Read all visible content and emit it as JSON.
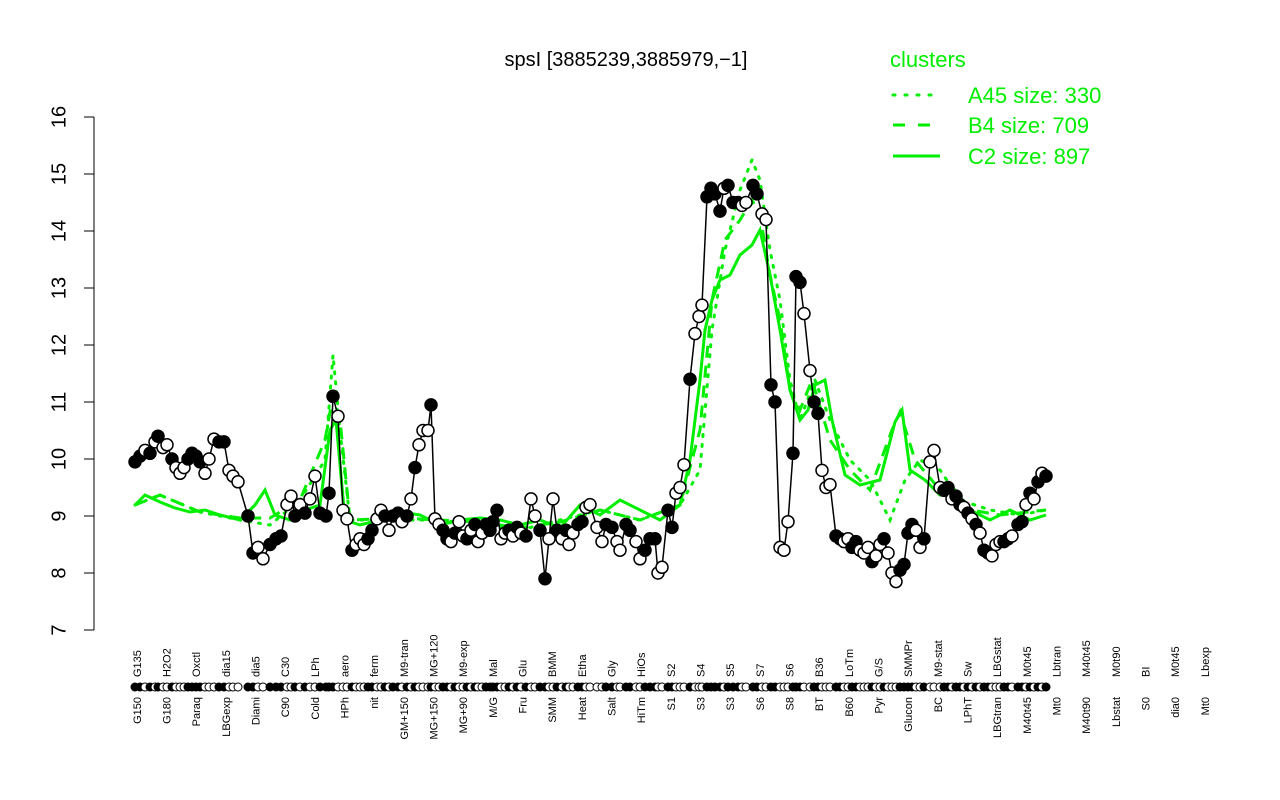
{
  "chart_data": {
    "type": "line",
    "title": "spsI [3885239,3885979,−1]",
    "xlabel": "",
    "ylabel": "",
    "ylim": [
      7,
      16
    ],
    "yticks": [
      7,
      8,
      9,
      10,
      11,
      12,
      13,
      14,
      15,
      16
    ],
    "grid": false,
    "legend": {
      "title": "clusters",
      "position": "top-right",
      "color": "#00ee00",
      "entries": [
        {
          "label": "A45 size: 330",
          "style": "dotted"
        },
        {
          "label": "B4 size: 709",
          "style": "dashed"
        },
        {
          "label": "C2 size: 897",
          "style": "solid"
        }
      ]
    },
    "x_tick_labels_bottom": [
      "G150",
      "G180",
      "Paraq",
      "LBGexp",
      "Diami",
      "C90",
      "Cold",
      "HPh",
      "nit",
      "GM+150",
      "MG+150",
      "MG+90",
      "M/G",
      "Fru",
      "SMM",
      "Heat",
      "Salt",
      "HiTm",
      "S1",
      "S3",
      "S3",
      "S6",
      "S8",
      "BT",
      "B60",
      "Pyr",
      "Glucon",
      "BC",
      "LPhT",
      "LBGtran",
      "M40t45",
      "Mt0",
      "M40t90",
      "Lbstat",
      "S0",
      "dia0",
      "Mt0"
    ],
    "x_tick_labels_top": [
      "G135",
      "H2O2",
      "Oxctl",
      "dia15",
      "dia5",
      "C30",
      "LPh",
      "aero",
      "ferm",
      "M9-tran",
      "MG+120",
      "M9-exp",
      "Mal",
      "Glu",
      "BMM",
      "Etha",
      "Gly",
      "HiOs",
      "S2",
      "S4",
      "S5",
      "S7",
      "S6",
      "B36",
      "LoTm",
      "G/S",
      "SMMPr",
      "M9-stat",
      "Sw",
      "LBGstat",
      "M0t45",
      "Lbtran",
      "M40t45",
      "M0t90",
      "BI",
      "M0t45",
      "Lbexp"
    ],
    "series": [
      {
        "name": "expression",
        "color": "#000000",
        "points": [
          [
            135,
            9.95,
            1
          ],
          [
            140,
            10.05,
            1
          ],
          [
            145,
            10.15,
            0
          ],
          [
            150,
            10.1,
            1
          ],
          [
            155,
            10.3,
            0
          ],
          [
            158,
            10.4,
            1
          ],
          [
            163,
            10.2,
            0
          ],
          [
            167,
            10.25,
            0
          ],
          [
            172,
            10.0,
            1
          ],
          [
            176,
            9.85,
            0
          ],
          [
            180,
            9.75,
            0
          ],
          [
            184,
            9.85,
            0
          ],
          [
            188,
            10.0,
            1
          ],
          [
            192,
            10.1,
            1
          ],
          [
            196,
            10.05,
            1
          ],
          [
            200,
            9.95,
            1
          ],
          [
            205,
            9.75,
            0
          ],
          [
            209,
            10.0,
            0
          ],
          [
            214,
            10.35,
            0
          ],
          [
            219,
            10.3,
            1
          ],
          [
            224,
            10.3,
            1
          ],
          [
            229,
            9.8,
            0
          ],
          [
            233,
            9.7,
            0
          ],
          [
            238,
            9.6,
            0
          ],
          [
            248,
            9.0,
            1
          ],
          [
            253,
            8.35,
            1
          ],
          [
            258,
            8.45,
            0
          ],
          [
            263,
            8.25,
            0
          ],
          [
            270,
            8.5,
            1
          ],
          [
            276,
            8.6,
            1
          ],
          [
            281,
            8.65,
            1
          ],
          [
            287,
            9.2,
            0
          ],
          [
            291,
            9.35,
            0
          ],
          [
            295,
            9.0,
            1
          ],
          [
            300,
            9.2,
            0
          ],
          [
            305,
            9.05,
            1
          ],
          [
            310,
            9.3,
            0
          ],
          [
            315,
            9.7,
            0
          ],
          [
            320,
            9.05,
            1
          ],
          [
            326,
            9.0,
            1
          ],
          [
            329,
            9.4,
            1
          ],
          [
            333,
            11.1,
            1
          ],
          [
            338,
            10.75,
            0
          ],
          [
            343,
            9.1,
            0
          ],
          [
            347,
            8.95,
            0
          ],
          [
            352,
            8.4,
            1
          ],
          [
            356,
            8.5,
            0
          ],
          [
            360,
            8.6,
            0
          ],
          [
            364,
            8.5,
            0
          ],
          [
            368,
            8.6,
            1
          ],
          [
            372,
            8.75,
            1
          ],
          [
            377,
            8.95,
            0
          ],
          [
            381,
            9.1,
            0
          ],
          [
            385,
            9.0,
            1
          ],
          [
            389,
            8.75,
            0
          ],
          [
            393,
            9.0,
            1
          ],
          [
            398,
            9.05,
            1
          ],
          [
            402,
            8.9,
            0
          ],
          [
            407,
            9.0,
            1
          ],
          [
            411,
            9.3,
            0
          ],
          [
            415,
            9.85,
            1
          ],
          [
            419,
            10.25,
            0
          ],
          [
            423,
            10.5,
            0
          ],
          [
            428,
            10.5,
            0
          ],
          [
            431,
            10.95,
            1
          ],
          [
            435,
            8.95,
            0
          ],
          [
            439,
            8.85,
            0
          ],
          [
            443,
            8.75,
            1
          ],
          [
            447,
            8.6,
            1
          ],
          [
            451,
            8.55,
            0
          ],
          [
            455,
            8.7,
            1
          ],
          [
            459,
            8.9,
            0
          ],
          [
            463,
            8.65,
            0
          ],
          [
            467,
            8.6,
            1
          ],
          [
            471,
            8.75,
            0
          ],
          [
            475,
            8.85,
            1
          ],
          [
            478,
            8.55,
            0
          ],
          [
            482,
            8.7,
            0
          ],
          [
            486,
            8.85,
            1
          ],
          [
            490,
            8.75,
            1
          ],
          [
            493,
            8.9,
            1
          ],
          [
            497,
            9.1,
            1
          ],
          [
            501,
            8.6,
            0
          ],
          [
            505,
            8.7,
            0
          ],
          [
            509,
            8.75,
            1
          ],
          [
            513,
            8.65,
            0
          ],
          [
            517,
            8.8,
            1
          ],
          [
            521,
            8.7,
            0
          ],
          [
            526,
            8.65,
            1
          ],
          [
            531,
            9.3,
            0
          ],
          [
            535,
            9.0,
            0
          ],
          [
            540,
            8.75,
            1
          ],
          [
            545,
            7.9,
            1
          ],
          [
            549,
            8.6,
            0
          ],
          [
            553,
            9.3,
            0
          ],
          [
            557,
            8.75,
            1
          ],
          [
            562,
            8.6,
            0
          ],
          [
            566,
            8.75,
            1
          ],
          [
            569,
            8.5,
            0
          ],
          [
            573,
            8.7,
            0
          ],
          [
            578,
            8.85,
            1
          ],
          [
            582,
            8.9,
            1
          ],
          [
            586,
            9.15,
            0
          ],
          [
            590,
            9.2,
            0
          ],
          [
            597,
            8.8,
            0
          ],
          [
            602,
            8.55,
            0
          ],
          [
            606,
            8.85,
            1
          ],
          [
            612,
            8.8,
            1
          ],
          [
            617,
            8.55,
            0
          ],
          [
            620,
            8.4,
            0
          ],
          [
            626,
            8.85,
            1
          ],
          [
            630,
            8.75,
            1
          ],
          [
            636,
            8.55,
            0
          ],
          [
            640,
            8.25,
            0
          ],
          [
            645,
            8.4,
            1
          ],
          [
            650,
            8.6,
            1
          ],
          [
            655,
            8.6,
            1
          ],
          [
            658,
            8.0,
            0
          ],
          [
            662,
            8.1,
            0
          ],
          [
            668,
            9.1,
            1
          ],
          [
            672,
            8.8,
            1
          ],
          [
            676,
            9.4,
            0
          ],
          [
            680,
            9.5,
            0
          ],
          [
            684,
            9.9,
            0
          ],
          [
            690,
            11.4,
            1
          ],
          [
            695,
            12.2,
            0
          ],
          [
            699,
            12.5,
            0
          ],
          [
            702,
            12.7,
            0
          ],
          [
            707,
            14.6,
            1
          ],
          [
            711,
            14.75,
            1
          ],
          [
            715,
            14.65,
            1
          ],
          [
            720,
            14.35,
            1
          ],
          [
            724,
            14.75,
            0
          ],
          [
            728,
            14.8,
            1
          ],
          [
            733,
            14.5,
            1
          ],
          [
            738,
            14.5,
            1
          ],
          [
            742,
            14.45,
            0
          ],
          [
            746,
            14.5,
            0
          ],
          [
            753,
            14.8,
            1
          ],
          [
            757,
            14.65,
            1
          ],
          [
            762,
            14.3,
            0
          ],
          [
            766,
            14.2,
            0
          ],
          [
            771,
            11.3,
            1
          ],
          [
            775,
            11.0,
            1
          ],
          [
            780,
            8.45,
            0
          ],
          [
            784,
            8.4,
            0
          ],
          [
            788,
            8.9,
            0
          ],
          [
            793,
            10.1,
            1
          ],
          [
            796,
            13.2,
            1
          ],
          [
            800,
            13.1,
            1
          ],
          [
            804,
            12.55,
            0
          ],
          [
            810,
            11.55,
            0
          ],
          [
            814,
            11.0,
            1
          ],
          [
            818,
            10.8,
            1
          ],
          [
            822,
            9.8,
            0
          ],
          [
            826,
            9.5,
            0
          ],
          [
            830,
            9.55,
            0
          ],
          [
            836,
            8.65,
            1
          ],
          [
            840,
            8.6,
            1
          ],
          [
            844,
            8.55,
            0
          ],
          [
            848,
            8.6,
            0
          ],
          [
            852,
            8.45,
            1
          ],
          [
            856,
            8.55,
            1
          ],
          [
            860,
            8.4,
            0
          ],
          [
            864,
            8.35,
            0
          ],
          [
            868,
            8.45,
            0
          ],
          [
            872,
            8.2,
            1
          ],
          [
            876,
            8.3,
            0
          ],
          [
            880,
            8.5,
            0
          ],
          [
            884,
            8.6,
            1
          ],
          [
            888,
            8.35,
            0
          ],
          [
            892,
            8.0,
            0
          ],
          [
            896,
            7.85,
            0
          ],
          [
            900,
            8.05,
            1
          ],
          [
            904,
            8.15,
            1
          ],
          [
            908,
            8.7,
            1
          ],
          [
            912,
            8.85,
            1
          ],
          [
            916,
            8.75,
            0
          ],
          [
            920,
            8.45,
            0
          ],
          [
            924,
            8.6,
            1
          ],
          [
            930,
            9.95,
            0
          ],
          [
            934,
            10.15,
            0
          ],
          [
            940,
            9.5,
            0
          ],
          [
            944,
            9.45,
            1
          ],
          [
            948,
            9.5,
            1
          ],
          [
            952,
            9.3,
            0
          ],
          [
            956,
            9.35,
            1
          ],
          [
            960,
            9.2,
            1
          ],
          [
            964,
            9.15,
            0
          ],
          [
            968,
            9.05,
            1
          ],
          [
            972,
            8.95,
            0
          ],
          [
            976,
            8.85,
            1
          ],
          [
            980,
            8.7,
            0
          ],
          [
            984,
            8.4,
            1
          ],
          [
            988,
            8.35,
            1
          ],
          [
            992,
            8.3,
            0
          ],
          [
            996,
            8.5,
            0
          ],
          [
            1000,
            8.55,
            0
          ],
          [
            1004,
            8.55,
            1
          ],
          [
            1008,
            8.6,
            1
          ],
          [
            1012,
            8.65,
            0
          ],
          [
            1018,
            8.85,
            1
          ],
          [
            1022,
            8.9,
            1
          ],
          [
            1026,
            9.2,
            0
          ],
          [
            1030,
            9.4,
            1
          ],
          [
            1034,
            9.3,
            0
          ],
          [
            1038,
            9.6,
            1
          ],
          [
            1042,
            9.75,
            0
          ],
          [
            1046,
            9.7,
            1
          ]
        ]
      },
      {
        "name": "A45 size: 330",
        "style": "dotted",
        "color": "#00ee00"
      },
      {
        "name": "B4 size: 709",
        "style": "dashed",
        "color": "#00ee00"
      },
      {
        "name": "C2 size: 897",
        "style": "solid",
        "color": "#00ee00"
      }
    ]
  }
}
